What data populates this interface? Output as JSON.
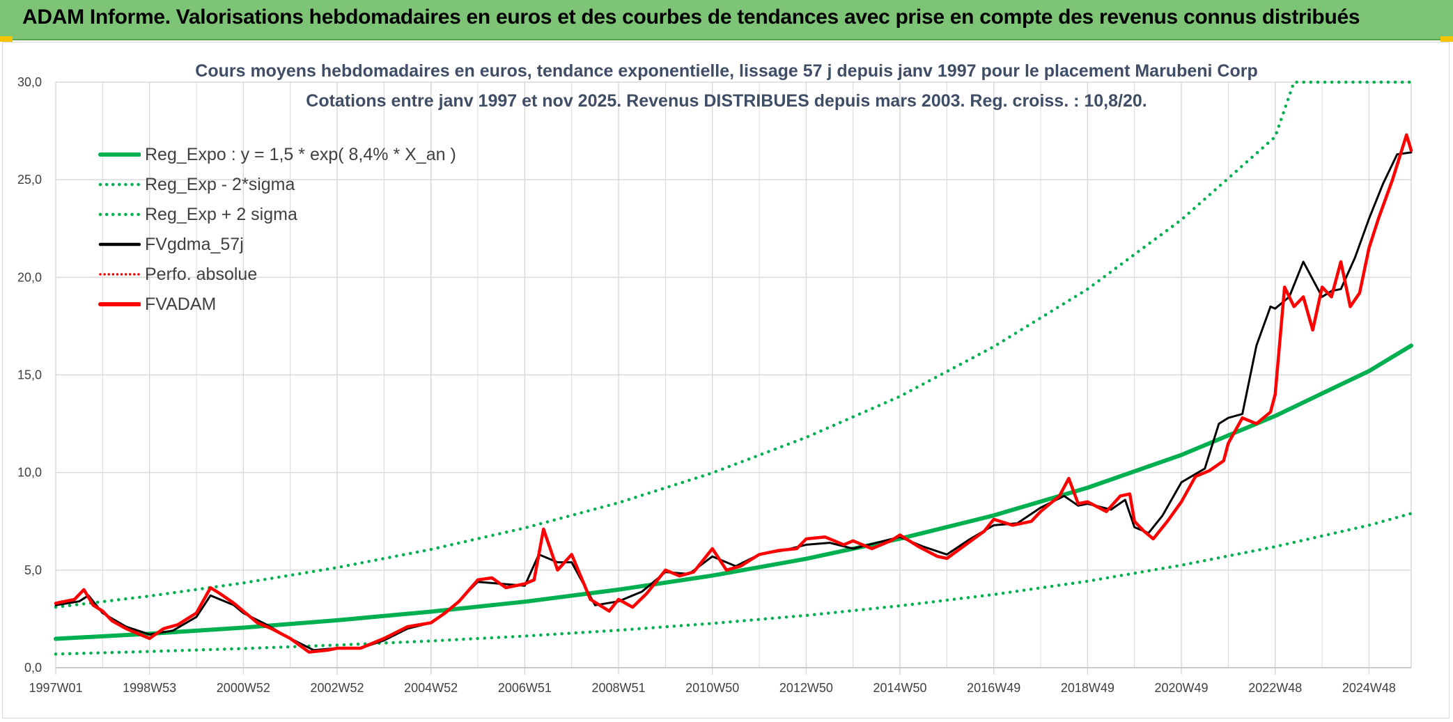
{
  "banner": {
    "title": "ADAM Informe. Valorisations hebdomadaires en euros et des courbes de tendances avec prise en compte des revenus connus distribués"
  },
  "colors": {
    "banner_bg": "#7dc476",
    "regression": "#00b050",
    "fvgdma": "#000000",
    "fvadam": "#ff0000",
    "perfo": "#ff0000",
    "gridline": "#d9d9d9",
    "title_text": "#404d66"
  },
  "chart_data": {
    "type": "line",
    "title": "Cours moyens hebdomadaires en euros, tendance exponentielle, lissage 57 j depuis janv 1997 pour le placement Marubeni Corp",
    "subtitle": "Cotations entre janv 1997 et nov 2025. Revenus DISTRIBUES depuis mars 2003. Reg. croiss. : 10,8/20.",
    "xlabel": "",
    "ylabel": "",
    "ylim": [
      0,
      30
    ],
    "xlim": [
      1997.0,
      2025.9
    ],
    "grid": true,
    "legend_position": "top-left",
    "y_ticks": [
      "0,0",
      "5,0",
      "10,0",
      "15,0",
      "20,0",
      "25,0",
      "30,0"
    ],
    "y_tick_values": [
      0,
      5,
      10,
      15,
      20,
      25,
      30
    ],
    "x_tick_labels": [
      "1997W01",
      "1998W53",
      "2000W52",
      "2002W52",
      "2004W52",
      "2006W51",
      "2008W51",
      "2010W50",
      "2012W50",
      "2014W50",
      "2016W49",
      "2018W49",
      "2020W49",
      "2022W48",
      "2024W48"
    ],
    "x_tick_values": [
      1997.0,
      1999.0,
      2001.0,
      2003.0,
      2005.0,
      2007.0,
      2009.0,
      2011.0,
      2013.0,
      2015.0,
      2017.0,
      2019.0,
      2021.0,
      2023.0,
      2025.0
    ],
    "series": [
      {
        "name": "Reg_Expo : y = 1,5 * exp( 8,4% *  X_an )",
        "style": "solid-thick",
        "color": "#00b050",
        "x": [
          1997.0,
          1999.0,
          2001.0,
          2003.0,
          2005.0,
          2007.0,
          2009.0,
          2011.0,
          2013.0,
          2015.0,
          2017.0,
          2019.0,
          2021.0,
          2023.0,
          2025.0,
          2025.9
        ],
        "values": [
          1.48,
          1.74,
          2.05,
          2.43,
          2.87,
          3.38,
          4.0,
          4.72,
          5.58,
          6.61,
          7.8,
          9.22,
          10.9,
          12.9,
          15.2,
          16.5
        ]
      },
      {
        "name": "Reg_Exp - 2*sigma",
        "style": "dotted",
        "color": "#00b050",
        "x": [
          1997.0,
          1999.0,
          2001.0,
          2003.0,
          2005.0,
          2007.0,
          2009.0,
          2011.0,
          2013.0,
          2015.0,
          2017.0,
          2019.0,
          2021.0,
          2023.0,
          2025.0,
          2025.9
        ],
        "values": [
          0.7,
          0.83,
          0.98,
          1.16,
          1.37,
          1.62,
          1.92,
          2.27,
          2.68,
          3.17,
          3.75,
          4.43,
          5.25,
          6.2,
          7.3,
          7.9
        ]
      },
      {
        "name": "Reg_Exp + 2 sigma",
        "style": "dotted",
        "color": "#00b050",
        "x": [
          1997.0,
          1999.0,
          2001.0,
          2003.0,
          2005.0,
          2007.0,
          2009.0,
          2011.0,
          2013.0,
          2015.0,
          2017.0,
          2019.0,
          2021.0,
          2023.0,
          2023.4,
          2024.0,
          2025.0,
          2025.9
        ],
        "values": [
          3.1,
          3.67,
          4.34,
          5.13,
          6.06,
          7.16,
          8.45,
          9.98,
          11.8,
          13.9,
          16.45,
          19.4,
          22.95,
          27.2,
          30.0,
          30.0,
          30.0,
          30.0
        ]
      },
      {
        "name": "FVgdma_57j",
        "style": "solid",
        "color": "#000000",
        "x": [
          1997.0,
          1997.5,
          1997.7,
          1998.0,
          1998.5,
          1999.0,
          1999.5,
          2000.0,
          2000.3,
          2000.8,
          2001.0,
          2001.5,
          2002.0,
          2002.5,
          2003.0,
          2003.5,
          2004.0,
          2004.5,
          2005.0,
          2005.5,
          2006.0,
          2006.5,
          2007.0,
          2007.3,
          2007.7,
          2008.0,
          2008.5,
          2009.0,
          2009.5,
          2010.0,
          2010.5,
          2011.0,
          2011.5,
          2012.0,
          2012.5,
          2013.0,
          2013.5,
          2014.0,
          2014.5,
          2015.0,
          2015.5,
          2016.0,
          2016.5,
          2017.0,
          2017.5,
          2018.0,
          2018.5,
          2018.8,
          2019.0,
          2019.5,
          2019.8,
          2020.0,
          2020.3,
          2020.6,
          2021.0,
          2021.5,
          2021.8,
          2022.0,
          2022.3,
          2022.6,
          2022.9,
          2023.0,
          2023.3,
          2023.6,
          2024.0,
          2024.2,
          2024.4,
          2024.7,
          2025.0,
          2025.3,
          2025.6,
          2025.9
        ],
        "values": [
          3.2,
          3.4,
          3.7,
          2.8,
          2.1,
          1.7,
          1.9,
          2.6,
          3.7,
          3.2,
          2.8,
          2.2,
          1.5,
          0.9,
          1.0,
          1.0,
          1.4,
          2.0,
          2.3,
          3.2,
          4.4,
          4.3,
          4.2,
          5.8,
          5.4,
          5.4,
          3.2,
          3.4,
          3.9,
          4.9,
          4.8,
          5.7,
          5.2,
          5.8,
          6.0,
          6.3,
          6.4,
          6.1,
          6.4,
          6.7,
          6.2,
          5.8,
          6.6,
          7.3,
          7.4,
          8.2,
          8.8,
          8.3,
          8.4,
          8.1,
          8.6,
          7.2,
          6.9,
          7.8,
          9.5,
          10.2,
          12.5,
          12.8,
          13.0,
          16.5,
          18.5,
          18.4,
          19.0,
          20.8,
          19.0,
          19.3,
          19.4,
          21.0,
          23.0,
          24.8,
          26.3,
          26.4
        ]
      },
      {
        "name": "Perfo. absolue",
        "style": "dotted",
        "color": "#ff0000",
        "x": [],
        "values": []
      },
      {
        "name": "FVADAM",
        "style": "solid-thick",
        "color": "#ff0000",
        "x": [
          1997.0,
          1997.4,
          1997.6,
          1997.8,
          1998.0,
          1998.2,
          1998.5,
          1999.0,
          1999.3,
          1999.6,
          2000.0,
          2000.3,
          2000.5,
          2000.8,
          2001.0,
          2001.3,
          2001.6,
          2002.0,
          2002.4,
          2002.8,
          2003.0,
          2003.5,
          2004.0,
          2004.5,
          2005.0,
          2005.3,
          2005.6,
          2006.0,
          2006.3,
          2006.6,
          2007.0,
          2007.2,
          2007.4,
          2007.7,
          2008.0,
          2008.4,
          2008.8,
          2009.0,
          2009.3,
          2009.6,
          2010.0,
          2010.3,
          2010.6,
          2011.0,
          2011.3,
          2011.6,
          2012.0,
          2012.4,
          2012.8,
          2013.0,
          2013.4,
          2013.8,
          2014.0,
          2014.4,
          2014.8,
          2015.0,
          2015.4,
          2015.8,
          2016.0,
          2016.4,
          2016.8,
          2017.0,
          2017.4,
          2017.8,
          2018.0,
          2018.4,
          2018.6,
          2018.8,
          2019.0,
          2019.4,
          2019.7,
          2019.9,
          2020.0,
          2020.2,
          2020.4,
          2020.7,
          2021.0,
          2021.3,
          2021.6,
          2021.9,
          2022.0,
          2022.3,
          2022.6,
          2022.9,
          2023.0,
          2023.2,
          2023.4,
          2023.6,
          2023.8,
          2024.0,
          2024.2,
          2024.4,
          2024.6,
          2024.8,
          2025.0,
          2025.2,
          2025.5,
          2025.8,
          2025.9
        ],
        "values": [
          3.3,
          3.5,
          4.0,
          3.2,
          2.9,
          2.4,
          2.0,
          1.5,
          2.0,
          2.2,
          2.8,
          4.1,
          3.8,
          3.3,
          2.9,
          2.3,
          2.0,
          1.5,
          0.8,
          0.9,
          1.0,
          1.0,
          1.5,
          2.1,
          2.3,
          2.8,
          3.4,
          4.5,
          4.6,
          4.1,
          4.3,
          4.5,
          7.1,
          5.0,
          5.8,
          3.5,
          2.9,
          3.5,
          3.1,
          3.8,
          5.0,
          4.7,
          4.9,
          6.1,
          5.0,
          5.2,
          5.8,
          6.0,
          6.1,
          6.6,
          6.7,
          6.3,
          6.5,
          6.1,
          6.5,
          6.8,
          6.2,
          5.7,
          5.6,
          6.3,
          7.0,
          7.6,
          7.3,
          7.5,
          8.0,
          8.8,
          9.7,
          8.4,
          8.5,
          8.0,
          8.8,
          8.9,
          7.5,
          7.0,
          6.6,
          7.5,
          8.5,
          9.8,
          10.1,
          10.6,
          11.5,
          12.8,
          12.5,
          13.1,
          14.0,
          19.5,
          18.5,
          19.0,
          17.3,
          19.5,
          19.0,
          20.8,
          18.5,
          19.2,
          21.5,
          23.0,
          25.0,
          27.3,
          26.5
        ]
      }
    ]
  }
}
